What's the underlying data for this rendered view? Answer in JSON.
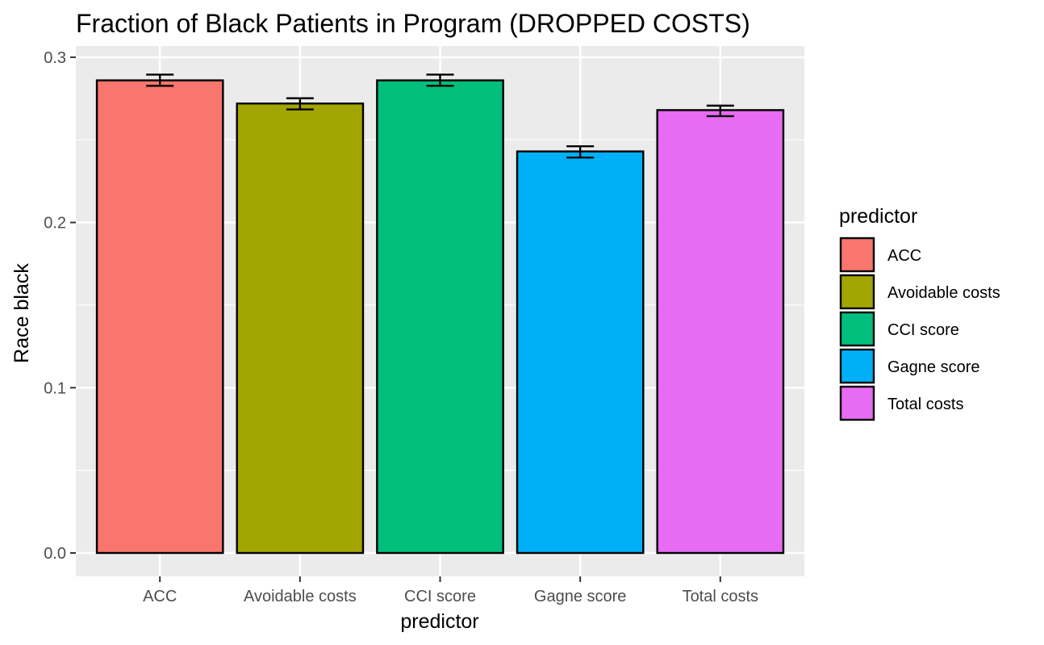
{
  "chart_data": {
    "type": "bar",
    "title": "Fraction of Black Patients in Program (DROPPED COSTS)",
    "xlabel": "predictor",
    "ylabel": "Race black",
    "ylim": [
      -0.013,
      0.3025
    ],
    "yticks": [
      "0.0",
      "0.1",
      "0.2",
      "0.3"
    ],
    "ytick_values": [
      0.0,
      0.1,
      0.2,
      0.3
    ],
    "categories": [
      "ACC",
      "Avoidable costs",
      "CCI score",
      "Gagne score",
      "Total costs"
    ],
    "values": [
      0.286,
      0.272,
      0.286,
      0.243,
      0.268
    ],
    "error_low": [
      0.2827,
      0.2684,
      0.2827,
      0.2393,
      0.2643
    ],
    "error_high": [
      0.2895,
      0.2752,
      0.2895,
      0.2461,
      0.2707
    ],
    "colors": [
      "#F8766D",
      "#A3A500",
      "#00BF7D",
      "#00B0F6",
      "#E76BF3"
    ],
    "grid": true,
    "panel_background": "#EBEBEB",
    "legend": {
      "title": "predictor",
      "position": "right",
      "entries": [
        "ACC",
        "Avoidable costs",
        "CCI score",
        "Gagne score",
        "Total costs"
      ]
    }
  }
}
